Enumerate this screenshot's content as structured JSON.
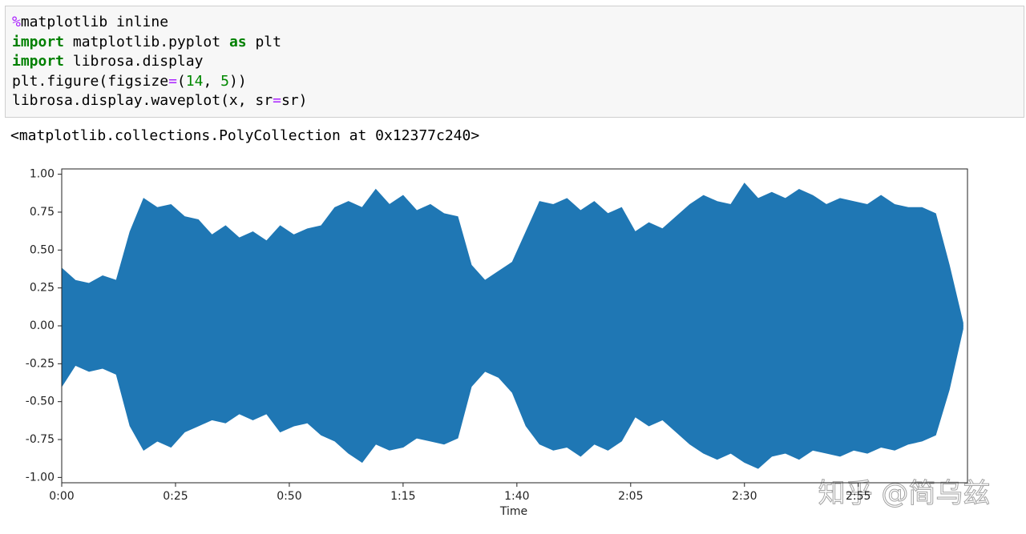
{
  "code": {
    "lines": [
      [
        {
          "text": "%",
          "color": "#aa22ff"
        },
        {
          "text": "matplotlib inline",
          "color": "#000000"
        }
      ],
      [
        {
          "text": "import",
          "color": "#008000",
          "weight": "bold"
        },
        {
          "text": " matplotlib.pyplot ",
          "color": "#000000"
        },
        {
          "text": "as",
          "color": "#008000",
          "weight": "bold"
        },
        {
          "text": " plt",
          "color": "#000000"
        }
      ],
      [
        {
          "text": "import",
          "color": "#008000",
          "weight": "bold"
        },
        {
          "text": " librosa.display",
          "color": "#000000"
        }
      ],
      [
        {
          "text": "plt.figure(figsize",
          "color": "#000000"
        },
        {
          "text": "=",
          "color": "#aa22ff"
        },
        {
          "text": "(",
          "color": "#000000"
        },
        {
          "text": "14",
          "color": "#008800"
        },
        {
          "text": ", ",
          "color": "#000000"
        },
        {
          "text": "5",
          "color": "#008800"
        },
        {
          "text": "))",
          "color": "#000000"
        }
      ],
      [
        {
          "text": "librosa.display.waveplot(x, sr",
          "color": "#000000"
        },
        {
          "text": "=",
          "color": "#aa22ff"
        },
        {
          "text": "sr)",
          "color": "#000000"
        }
      ]
    ]
  },
  "output": "<matplotlib.collections.PolyCollection at 0x12377c240>",
  "watermark": "知乎 @简乌兹",
  "chart_data": {
    "type": "area",
    "x_label": "Time",
    "x": [
      0,
      3,
      6,
      9,
      12,
      15,
      18,
      21,
      24,
      27,
      30,
      33,
      36,
      39,
      42,
      45,
      48,
      51,
      54,
      57,
      60,
      63,
      66,
      69,
      72,
      75,
      78,
      81,
      84,
      87,
      90,
      93,
      96,
      99,
      102,
      105,
      108,
      111,
      114,
      117,
      120,
      123,
      126,
      129,
      132,
      135,
      138,
      141,
      144,
      147,
      150,
      153,
      156,
      159,
      162,
      165,
      168,
      171,
      174,
      177,
      180,
      183,
      186,
      189,
      192,
      195,
      198
    ],
    "series": [
      {
        "color": "#1f77b4",
        "values": [
          0.38,
          0.3,
          0.28,
          0.33,
          0.3,
          0.62,
          0.84,
          0.78,
          0.8,
          0.72,
          0.7,
          0.6,
          0.66,
          0.58,
          0.62,
          0.56,
          0.66,
          0.6,
          0.64,
          0.66,
          0.78,
          0.82,
          0.78,
          0.9,
          0.8,
          0.86,
          0.76,
          0.8,
          0.74,
          0.72,
          0.4,
          0.3,
          0.36,
          0.42,
          0.62,
          0.82,
          0.8,
          0.84,
          0.76,
          0.82,
          0.74,
          0.78,
          0.62,
          0.68,
          0.64,
          0.72,
          0.8,
          0.86,
          0.82,
          0.8,
          0.94,
          0.84,
          0.88,
          0.84,
          0.9,
          0.86,
          0.8,
          0.84,
          0.82,
          0.8,
          0.86,
          0.8,
          0.78,
          0.78,
          0.74,
          0.4,
          0.02
        ]
      },
      {
        "color": "#1f77b4",
        "values": [
          -0.4,
          -0.26,
          -0.3,
          -0.28,
          -0.32,
          -0.66,
          -0.82,
          -0.76,
          -0.8,
          -0.7,
          -0.66,
          -0.62,
          -0.64,
          -0.58,
          -0.62,
          -0.58,
          -0.7,
          -0.66,
          -0.64,
          -0.72,
          -0.76,
          -0.84,
          -0.9,
          -0.78,
          -0.82,
          -0.8,
          -0.74,
          -0.76,
          -0.78,
          -0.74,
          -0.4,
          -0.3,
          -0.34,
          -0.44,
          -0.66,
          -0.78,
          -0.82,
          -0.8,
          -0.86,
          -0.78,
          -0.82,
          -0.76,
          -0.6,
          -0.66,
          -0.62,
          -0.7,
          -0.78,
          -0.84,
          -0.88,
          -0.84,
          -0.9,
          -0.94,
          -0.86,
          -0.84,
          -0.88,
          -0.82,
          -0.84,
          -0.86,
          -0.82,
          -0.84,
          -0.8,
          -0.82,
          -0.78,
          -0.76,
          -0.72,
          -0.42,
          -0.02
        ]
      }
    ],
    "xlim": [
      0,
      199
    ],
    "xticks": [
      {
        "value": 0,
        "label": "0:00"
      },
      {
        "value": 25,
        "label": "0:25"
      },
      {
        "value": 50,
        "label": "0:50"
      },
      {
        "value": 75,
        "label": "1:15"
      },
      {
        "value": 100,
        "label": "1:40"
      },
      {
        "value": 125,
        "label": "2:05"
      },
      {
        "value": 150,
        "label": "2:30"
      },
      {
        "value": 175,
        "label": "2:55"
      }
    ],
    "ylim": [
      -1.035,
      1.035
    ],
    "yticks": [
      {
        "value": 1,
        "label": "1.00"
      },
      {
        "value": 0.75,
        "label": "0.75"
      },
      {
        "value": 0.5,
        "label": "0.50"
      },
      {
        "value": 0.25,
        "label": "0.25"
      },
      {
        "value": 0,
        "label": "0.00"
      },
      {
        "value": -0.25,
        "label": "-0.25"
      },
      {
        "value": -0.5,
        "label": "-0.50"
      },
      {
        "value": -0.75,
        "label": "-0.75"
      },
      {
        "value": -1,
        "label": "-1.00"
      }
    ]
  }
}
